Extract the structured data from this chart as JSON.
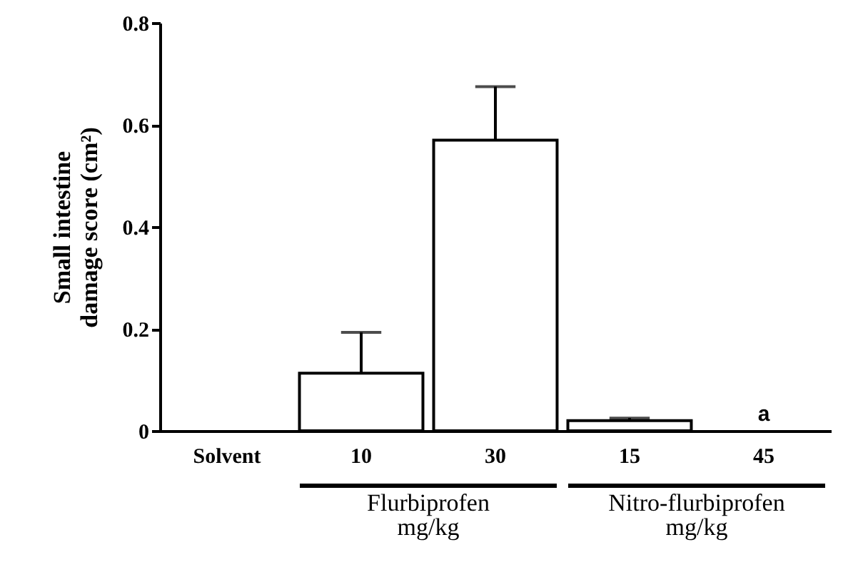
{
  "chart_data": {
    "type": "bar",
    "ylabel": "Small intestine damage score (cm²)",
    "categories": [
      "Solvent",
      "10",
      "30",
      "15",
      "45"
    ],
    "values": [
      0,
      0.113,
      0.57,
      0.02,
      0
    ],
    "errors": [
      null,
      0.08,
      0.105,
      0.005,
      null
    ],
    "color": "#ffffff",
    "ylim": [
      0,
      0.8
    ],
    "yticks": [
      0,
      0.2,
      0.4,
      0.6,
      0.8
    ],
    "annotations": [
      "Flurbiprofen\nmg/kg",
      "Nitro-flurbiprofen\nmg/kg",
      {
        "text": "a",
        "x": "45",
        "y": 0
      }
    ]
  }
}
